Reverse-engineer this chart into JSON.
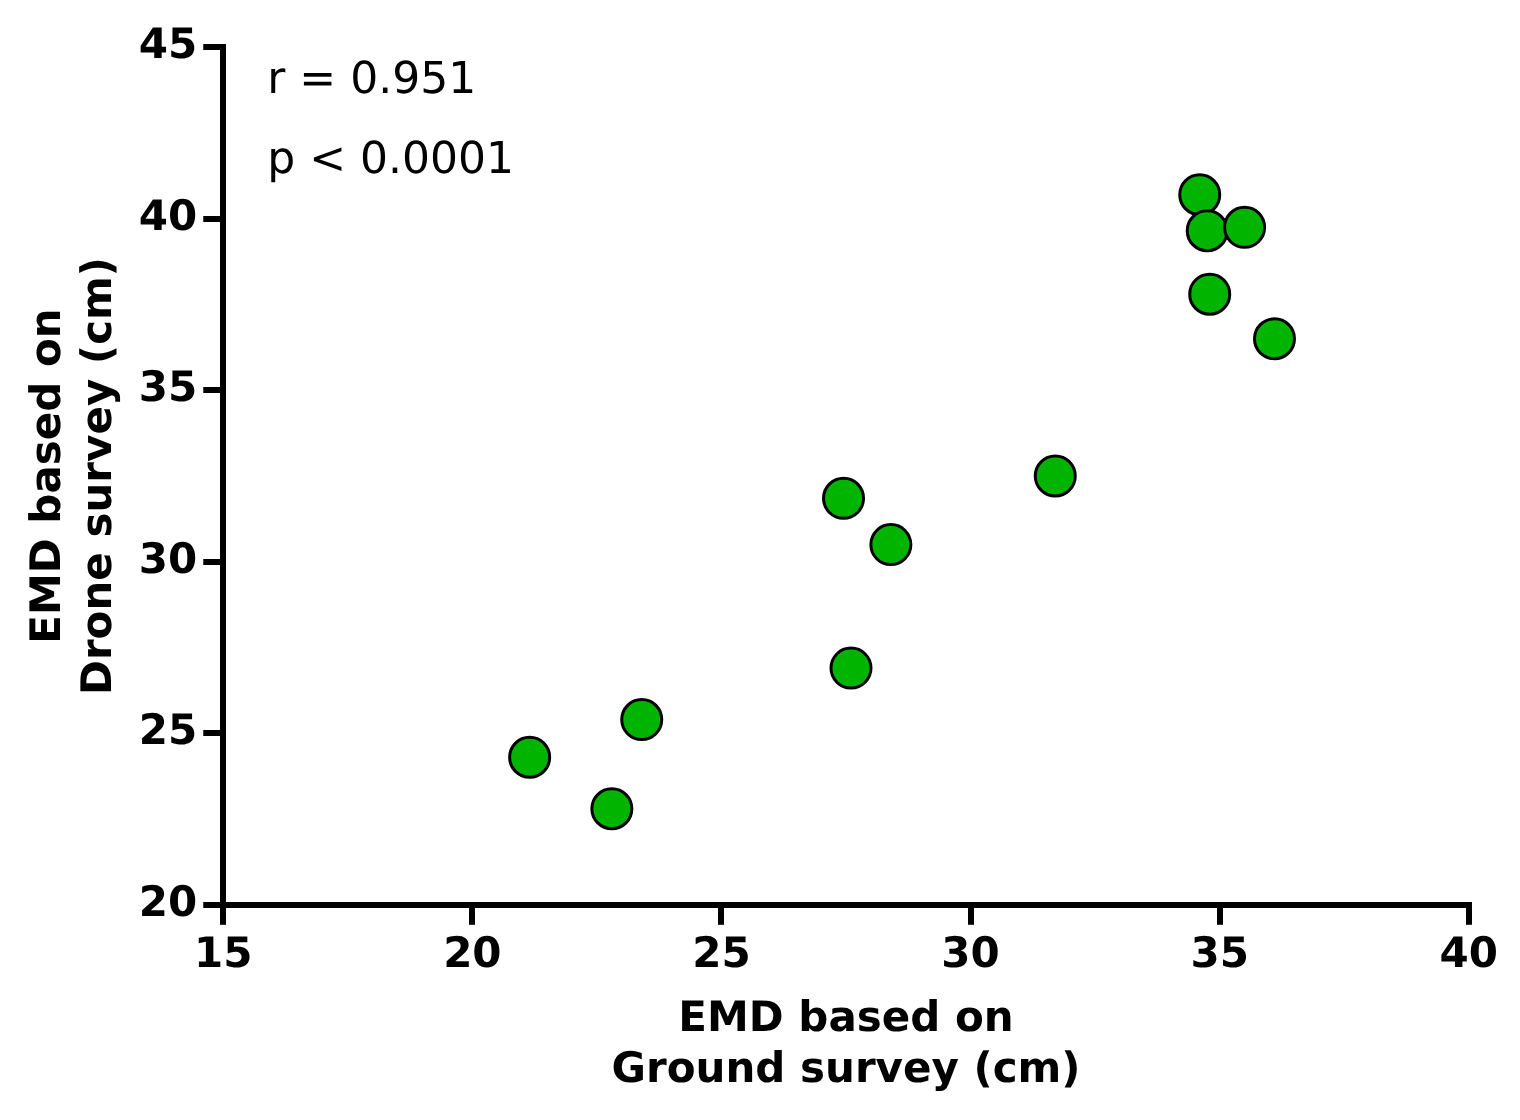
{
  "chart_data": {
    "type": "scatter",
    "xlabel": "EMD based on\nGround survey (cm)",
    "ylabel": "EMD based on\nDrone survey (cm)",
    "annotations": [
      "r = 0.951",
      "p < 0.0001"
    ],
    "series": [
      {
        "color": "#00b400",
        "x": [
          21.15,
          22.8,
          23.4,
          27.45,
          28.4,
          27.6,
          31.7,
          34.6,
          34.75,
          35.5,
          34.8,
          36.1
        ],
        "values": [
          24.3,
          22.8,
          25.4,
          31.85,
          30.5,
          26.9,
          32.5,
          40.7,
          39.65,
          39.75,
          37.8,
          36.5
        ]
      }
    ],
    "xlim": [
      15,
      40
    ],
    "xticks": [
      15,
      20,
      25,
      30,
      35,
      40
    ],
    "ylim": [
      20,
      45
    ],
    "yticks": [
      20,
      25,
      30,
      35,
      40,
      45
    ],
    "grid": false,
    "legend": false,
    "marker": "circle"
  }
}
